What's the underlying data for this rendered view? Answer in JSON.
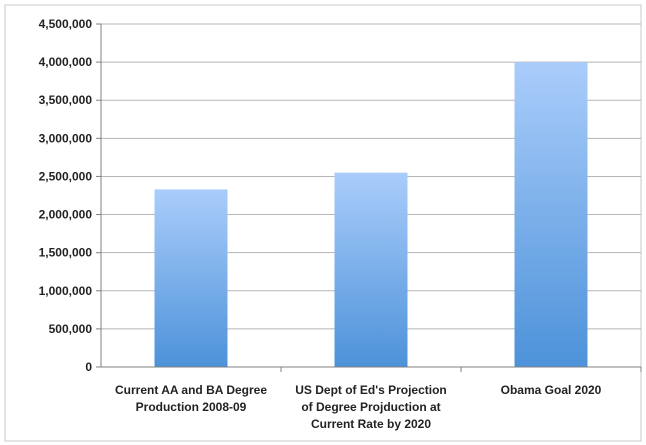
{
  "chart_data": {
    "type": "bar",
    "categories": [
      [
        "Current AA and BA Degree",
        "Production 2008-09"
      ],
      [
        "US Dept of Ed's Projection",
        "of Degree Projduction at",
        "Current Rate by 2020"
      ],
      [
        "Obama Goal 2020"
      ]
    ],
    "values": [
      2330000,
      2550000,
      4000000
    ],
    "ylim": [
      0,
      4500000
    ],
    "yticks": [
      0,
      500000,
      1000000,
      1500000,
      2000000,
      2500000,
      3000000,
      3500000,
      4000000,
      4500000
    ],
    "ytick_labels": [
      "0",
      "500,000",
      "1,000,000",
      "1,500,000",
      "2,000,000",
      "2,500,000",
      "3,000,000",
      "3,500,000",
      "4,000,000",
      "4,500,000"
    ],
    "grid": true,
    "legend": "none",
    "colors": {
      "bar_top": "#aacdfb",
      "bar_bottom": "#4d92d9",
      "grid": "#b5b5b5",
      "axis": "#808080"
    }
  }
}
